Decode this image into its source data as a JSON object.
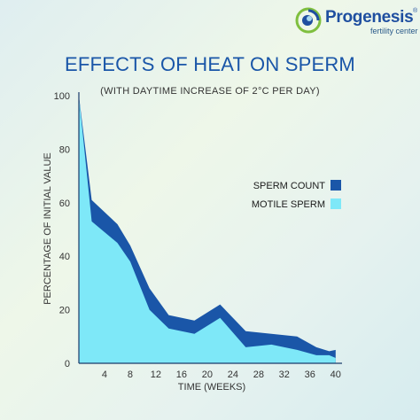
{
  "brand": {
    "name": "Progenesis",
    "registered": "®",
    "tagline": "fertility center",
    "colors": {
      "primary": "#1f4fa0",
      "green": "#7fbf3f"
    }
  },
  "chart_data": {
    "type": "area",
    "title": "EFFECTS OF HEAT ON SPERM",
    "subtitle": "(WITH DAYTIME INCREASE OF 2°C PER DAY)",
    "xlabel": "TIME (WEEKS)",
    "ylabel": "PERCENTAGE OF INITIAL VALUE",
    "xlim": [
      0,
      41
    ],
    "ylim": [
      0,
      100
    ],
    "x_ticks": [
      4,
      8,
      12,
      16,
      20,
      24,
      28,
      32,
      36,
      40
    ],
    "y_ticks": [
      0,
      20,
      40,
      60,
      80,
      100
    ],
    "legend_position": "right",
    "series": [
      {
        "name": "SPERM COUNT",
        "color": "#1a56a8",
        "x": [
          0,
          2,
          6,
          8,
          11,
          14,
          18,
          22,
          26,
          30,
          34,
          37,
          39,
          40
        ],
        "values": [
          100,
          61,
          52,
          44,
          28,
          18,
          16,
          22,
          12,
          11,
          10,
          6,
          4.5,
          5
        ]
      },
      {
        "name": "MOTILE SPERM",
        "color": "#7ee8f8",
        "x": [
          0,
          2,
          6,
          8,
          11,
          14,
          18,
          22,
          26,
          30,
          34,
          37,
          39,
          40
        ],
        "values": [
          100,
          53,
          45,
          38,
          20,
          13,
          11,
          17,
          6,
          7,
          5,
          3,
          3,
          2
        ]
      }
    ]
  }
}
